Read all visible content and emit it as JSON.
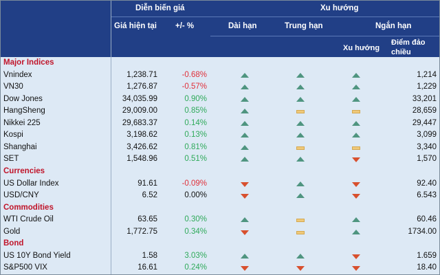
{
  "header": {
    "price_group": "Diễn biến giá",
    "trend_group": "Xu hướng",
    "current_price": "Giá hiện tại",
    "change_pct": "+/- %",
    "long_term": "Dài hạn",
    "mid_term": "Trung hạn",
    "short_term": "Ngắn hạn",
    "trend": "Xu hướng",
    "reversal_point": "Điểm đảo chiều"
  },
  "colors": {
    "header_bg": "#213f86",
    "body_bg": "#dde9f5",
    "up": "#4f9580",
    "down": "#d8502e",
    "flat": "#efc97a",
    "section": "#c0152a"
  },
  "rows": [
    {
      "section": "Major Indices"
    },
    {
      "name": "Vnindex",
      "price": "1,238.71",
      "pct": "-0.68%",
      "long": "up",
      "mid": "up",
      "short": "up",
      "reversal": "1,214"
    },
    {
      "name": "VN30",
      "price": "1,276.87",
      "pct": "-0.57%",
      "long": "up",
      "mid": "up",
      "short": "up",
      "reversal": "1,229"
    },
    {
      "name": "Dow Jones",
      "price": "34,035.99",
      "pct": "0.90%",
      "long": "up",
      "mid": "up",
      "short": "up",
      "reversal": "33,201"
    },
    {
      "name": "HangSheng",
      "price": "29,009.00",
      "pct": "0.85%",
      "long": "up",
      "mid": "flat",
      "short": "flat",
      "reversal": "28,659"
    },
    {
      "name": "Nikkei 225",
      "price": "29,683.37",
      "pct": "0.14%",
      "long": "up",
      "mid": "up",
      "short": "up",
      "reversal": "29,447"
    },
    {
      "name": "Kospi",
      "price": "3,198.62",
      "pct": "0.13%",
      "long": "up",
      "mid": "up",
      "short": "up",
      "reversal": "3,099"
    },
    {
      "name": "Shanghai",
      "price": "3,426.62",
      "pct": "0.81%",
      "long": "up",
      "mid": "flat",
      "short": "flat",
      "reversal": "3,340"
    },
    {
      "name": "SET",
      "price": "1,548.96",
      "pct": "0.51%",
      "long": "up",
      "mid": "up",
      "short": "down",
      "reversal": "1,570"
    },
    {
      "section": "Currencies"
    },
    {
      "name": "US Dollar Index",
      "price": "91.61",
      "pct": "-0.09%",
      "long": "down",
      "mid": "up",
      "short": "down",
      "reversal": "92.40"
    },
    {
      "name": "USD/CNY",
      "price": "6.52",
      "pct": "0.00%",
      "long": "down",
      "mid": "up",
      "short": "down",
      "reversal": "6.543"
    },
    {
      "section": "Commodities"
    },
    {
      "name": "WTI Crude Oil",
      "price": "63.65",
      "pct": "0.30%",
      "long": "up",
      "mid": "flat",
      "short": "up",
      "reversal": "60.46"
    },
    {
      "name": "Gold",
      "price": "1,772.75",
      "pct": "0.34%",
      "long": "down",
      "mid": "flat",
      "short": "up",
      "reversal": "1734.00"
    },
    {
      "section": "Bond"
    },
    {
      "name": "US 10Y Bond Yield",
      "price": "1.58",
      "pct": "3.03%",
      "long": "up",
      "mid": "up",
      "short": "down",
      "reversal": "1.659"
    },
    {
      "name": "S&P500 VIX",
      "price": "16.61",
      "pct": "0.24%",
      "long": "down",
      "mid": "down",
      "short": "down",
      "reversal": "18.40"
    }
  ]
}
